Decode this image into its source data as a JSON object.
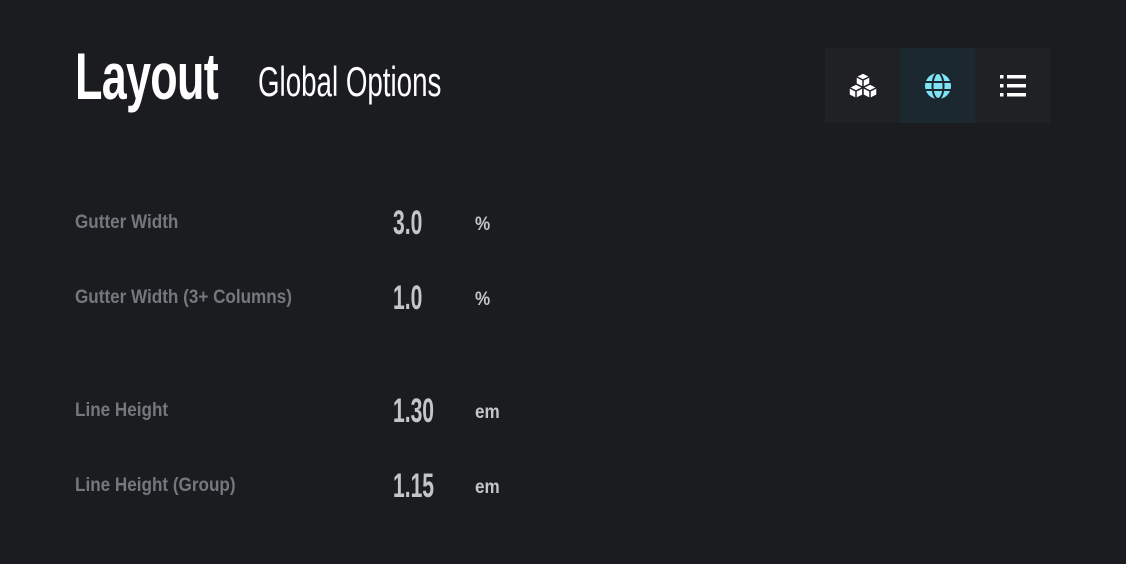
{
  "header": {
    "title": "Layout",
    "subtitle": "Global Options"
  },
  "toolbar": {
    "buttons": [
      {
        "icon": "cubes-icon",
        "active": false
      },
      {
        "icon": "globe-icon",
        "active": true
      },
      {
        "icon": "list-icon",
        "active": false
      }
    ],
    "accent": "#7fe3f5"
  },
  "settings": [
    {
      "label": "Gutter Width",
      "value": "3.0",
      "unit": "%"
    },
    {
      "label": "Gutter Width (3+ Columns)",
      "value": "1.0",
      "unit": "%"
    },
    {
      "label": "Line Height",
      "value": "1.30",
      "unit": "em"
    },
    {
      "label": "Line Height (Group)",
      "value": "1.15",
      "unit": "em"
    }
  ]
}
